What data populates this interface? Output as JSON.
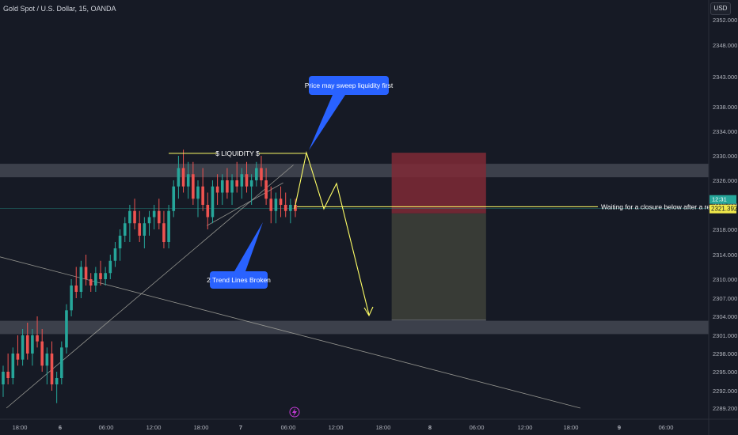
{
  "header": {
    "symbol_title": "Gold Spot / U.S. Dollar, 15, OANDA",
    "currency": "USD"
  },
  "colors": {
    "background": "#161a25",
    "bull_candle": "#26a69a",
    "bear_candle": "#ef5350",
    "zone": "#4a4e58",
    "annotation_yellow": "#ffff66",
    "callout_blue": "#2962ff",
    "trendline": "#a8a8a0",
    "stop_loss_zone": "#7f2a36",
    "take_profit_zone": "#3a3d37",
    "price_label": "#f0e94a"
  },
  "chart_data": {
    "type": "candlestick",
    "symbol": "Gold Spot / U.S. Dollar",
    "timeframe": "15",
    "exchange": "OANDA",
    "ylim": [
      2287,
      2354
    ],
    "y_ticks": [
      2352,
      2348,
      2343,
      2338,
      2334,
      2330,
      2326,
      2322,
      2318,
      2314,
      2310,
      2307,
      2304,
      2301,
      2298,
      2295,
      2292,
      2289.2
    ],
    "y_tick_labels": [
      "2352.000",
      "2348.000",
      "2343.000",
      "2338.000",
      "2334.000",
      "2330.000",
      "2326.000",
      "2322.000",
      "2318.000",
      "2314.000",
      "2310.000",
      "2307.000",
      "2304.000",
      "2301.000",
      "2298.000",
      "2295.000",
      "2292.000",
      "2289.200"
    ],
    "x_ticks": [
      {
        "label": "18:00",
        "x": 0
      },
      {
        "label": "6",
        "x": 6
      },
      {
        "label": "06:00",
        "x": 12
      },
      {
        "label": "12:00",
        "x": 18
      },
      {
        "label": "18:00",
        "x": 24
      },
      {
        "label": "7",
        "x": 30
      },
      {
        "label": "06:00",
        "x": 36
      },
      {
        "label": "12:00",
        "x": 42
      },
      {
        "label": "18:00",
        "x": 48
      },
      {
        "label": "8",
        "x": 54
      },
      {
        "label": "06:00",
        "x": 60
      },
      {
        "label": "12:00",
        "x": 66
      },
      {
        "label": "18:00",
        "x": 72
      },
      {
        "label": "9",
        "x": 78
      },
      {
        "label": "06:00",
        "x": 84
      }
    ],
    "bold_tick_labels": [
      "6",
      "7",
      "8",
      "9"
    ],
    "current_price": 2321.392,
    "countdown": "12:31",
    "candles_ohlc": [
      [
        2293,
        2296,
        2291,
        2295
      ],
      [
        2295,
        2298,
        2293,
        2294
      ],
      [
        2294,
        2299,
        2293,
        2298
      ],
      [
        2298,
        2301,
        2296,
        2297
      ],
      [
        2297,
        2302,
        2296,
        2301
      ],
      [
        2301,
        2303,
        2297,
        2298
      ],
      [
        2298,
        2302,
        2296,
        2301
      ],
      [
        2301,
        2304,
        2299,
        2300
      ],
      [
        2300,
        2302,
        2295,
        2296
      ],
      [
        2296,
        2299,
        2293,
        2298
      ],
      [
        2298,
        2300,
        2292,
        2293
      ],
      [
        2293,
        2295,
        2290,
        2294
      ],
      [
        2294,
        2300,
        2293,
        2299
      ],
      [
        2299,
        2306,
        2298,
        2305
      ],
      [
        2305,
        2310,
        2304,
        2309
      ],
      [
        2309,
        2312,
        2307,
        2308
      ],
      [
        2308,
        2313,
        2307,
        2312
      ],
      [
        2312,
        2314,
        2309,
        2310
      ],
      [
        2310,
        2311,
        2308,
        2309
      ],
      [
        2309,
        2312,
        2308,
        2311
      ],
      [
        2311,
        2313,
        2309,
        2310
      ],
      [
        2310,
        2312,
        2309,
        2311
      ],
      [
        2311,
        2314,
        2310,
        2313
      ],
      [
        2313,
        2316,
        2312,
        2315
      ],
      [
        2315,
        2318,
        2313,
        2317
      ],
      [
        2317,
        2320,
        2316,
        2319
      ],
      [
        2319,
        2322,
        2316,
        2321
      ],
      [
        2321,
        2323,
        2318,
        2319
      ],
      [
        2319,
        2321,
        2316,
        2317
      ],
      [
        2317,
        2320,
        2315,
        2319
      ],
      [
        2319,
        2321,
        2317,
        2320
      ],
      [
        2320,
        2322,
        2318,
        2321
      ],
      [
        2321,
        2323,
        2318,
        2319
      ],
      [
        2319,
        2321,
        2315,
        2316
      ],
      [
        2316,
        2322,
        2315,
        2321
      ],
      [
        2321,
        2326,
        2320,
        2325
      ],
      [
        2325,
        2330,
        2323,
        2328
      ],
      [
        2328,
        2331,
        2324,
        2325
      ],
      [
        2325,
        2329,
        2323,
        2327
      ],
      [
        2327,
        2329,
        2322,
        2323
      ],
      [
        2323,
        2326,
        2320,
        2325
      ],
      [
        2325,
        2328,
        2321,
        2322
      ],
      [
        2322,
        2324,
        2318,
        2320
      ],
      [
        2320,
        2326,
        2319,
        2325
      ],
      [
        2325,
        2327,
        2322,
        2324
      ],
      [
        2324,
        2327,
        2322,
        2326
      ],
      [
        2326,
        2328,
        2323,
        2324
      ],
      [
        2324,
        2327,
        2322,
        2326
      ],
      [
        2326,
        2329,
        2324,
        2325
      ],
      [
        2325,
        2328,
        2323,
        2327
      ],
      [
        2327,
        2329,
        2324,
        2325
      ],
      [
        2325,
        2327,
        2322,
        2326
      ],
      [
        2326,
        2329,
        2325,
        2328
      ],
      [
        2328,
        2330,
        2325,
        2326
      ],
      [
        2326,
        2328,
        2322,
        2323
      ],
      [
        2323,
        2325,
        2319,
        2321
      ],
      [
        2321,
        2324,
        2319,
        2323
      ],
      [
        2323,
        2325,
        2320,
        2322
      ],
      [
        2322,
        2324,
        2320,
        2321
      ],
      [
        2321,
        2323,
        2319,
        2322
      ],
      [
        2322,
        2323,
        2320,
        2321
      ]
    ],
    "annotations": {
      "liquidity_label": "$ LIQUIDITY $",
      "callout_top": "Price may sweep liquidity first",
      "callout_bottom": "2 Trend Lines Broken",
      "retest_note": "Waiting for a closure below after a retest"
    },
    "zones": [
      {
        "name": "upper supply zone",
        "from": 2326.5,
        "to": 2328.7
      },
      {
        "name": "lower demand zone",
        "from": 2301.2,
        "to": 2303.3
      }
    ],
    "liquidity_level": 2330.4,
    "retest_level": 2321.7,
    "position_box": {
      "stop_top": 2330.5,
      "entry": 2320.6,
      "target": 2303.4,
      "x_start": 48,
      "x_end": 60
    },
    "projected_path": [
      [
        41,
        2330.4
      ],
      [
        43.5,
        2321.7
      ],
      [
        45,
        2325.5
      ],
      [
        48.5,
        2304.0
      ]
    ],
    "trendlines": [
      {
        "from": [
          -6,
          2315
        ],
        "to": [
          72,
          2289.2
        ]
      },
      {
        "from": [
          -1,
          2289.2
        ],
        "to": [
          35.5,
          2328.5
        ]
      },
      {
        "from": [
          24.5,
          2318.6
        ],
        "to": [
          34.2,
          2325.6
        ]
      }
    ]
  }
}
